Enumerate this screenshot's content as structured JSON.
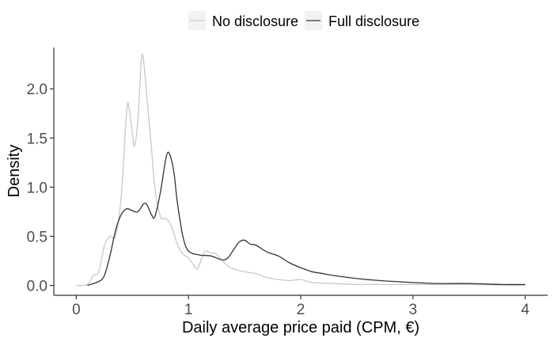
{
  "chart_data": {
    "type": "line",
    "title": "",
    "xlabel": "Daily average price paid (CPM, €)",
    "ylabel": "Density",
    "xlim": [
      -0.2,
      4.2
    ],
    "ylim": [
      -0.1,
      2.42
    ],
    "x_ticks": [
      0,
      1,
      2,
      3,
      4
    ],
    "x_tick_labels": [
      "0",
      "1",
      "2",
      "3",
      "4"
    ],
    "y_ticks": [
      0.0,
      0.5,
      1.0,
      1.5,
      2.0
    ],
    "y_tick_labels": [
      "0.0",
      "0.5",
      "1.0",
      "1.5",
      "2.0"
    ],
    "grid": false,
    "legend": {
      "position": "top"
    },
    "series": [
      {
        "name": "No disclosure",
        "color": "#c8c8c8",
        "points": [
          [
            0.0,
            0.0
          ],
          [
            0.1,
            0.01
          ],
          [
            0.15,
            0.1
          ],
          [
            0.2,
            0.14
          ],
          [
            0.25,
            0.4
          ],
          [
            0.3,
            0.5
          ],
          [
            0.35,
            0.5
          ],
          [
            0.4,
            0.9
          ],
          [
            0.45,
            1.78
          ],
          [
            0.47,
            1.8
          ],
          [
            0.5,
            1.55
          ],
          [
            0.52,
            1.42
          ],
          [
            0.55,
            1.7
          ],
          [
            0.58,
            2.3
          ],
          [
            0.6,
            2.28
          ],
          [
            0.63,
            1.9
          ],
          [
            0.67,
            1.4
          ],
          [
            0.7,
            1.0
          ],
          [
            0.75,
            0.7
          ],
          [
            0.8,
            0.68
          ],
          [
            0.85,
            0.6
          ],
          [
            0.9,
            0.42
          ],
          [
            0.95,
            0.32
          ],
          [
            1.0,
            0.28
          ],
          [
            1.05,
            0.2
          ],
          [
            1.08,
            0.17
          ],
          [
            1.12,
            0.28
          ],
          [
            1.15,
            0.35
          ],
          [
            1.2,
            0.33
          ],
          [
            1.25,
            0.32
          ],
          [
            1.3,
            0.25
          ],
          [
            1.35,
            0.2
          ],
          [
            1.4,
            0.17
          ],
          [
            1.5,
            0.14
          ],
          [
            1.6,
            0.12
          ],
          [
            1.7,
            0.08
          ],
          [
            1.8,
            0.06
          ],
          [
            1.9,
            0.05
          ],
          [
            2.0,
            0.06
          ],
          [
            2.1,
            0.03
          ],
          [
            2.3,
            0.02
          ],
          [
            2.5,
            0.01
          ],
          [
            3.0,
            0.01
          ],
          [
            3.5,
            0.01
          ],
          [
            4.0,
            0.0
          ]
        ]
      },
      {
        "name": "Full disclosure",
        "color": "#333333",
        "points": [
          [
            0.1,
            0.0
          ],
          [
            0.2,
            0.04
          ],
          [
            0.25,
            0.1
          ],
          [
            0.3,
            0.3
          ],
          [
            0.35,
            0.56
          ],
          [
            0.4,
            0.72
          ],
          [
            0.45,
            0.78
          ],
          [
            0.5,
            0.76
          ],
          [
            0.55,
            0.75
          ],
          [
            0.6,
            0.83
          ],
          [
            0.63,
            0.82
          ],
          [
            0.67,
            0.72
          ],
          [
            0.7,
            0.7
          ],
          [
            0.75,
            0.95
          ],
          [
            0.8,
            1.3
          ],
          [
            0.83,
            1.34
          ],
          [
            0.87,
            1.15
          ],
          [
            0.9,
            0.85
          ],
          [
            0.95,
            0.5
          ],
          [
            1.0,
            0.35
          ],
          [
            1.1,
            0.31
          ],
          [
            1.2,
            0.3
          ],
          [
            1.3,
            0.26
          ],
          [
            1.35,
            0.28
          ],
          [
            1.4,
            0.36
          ],
          [
            1.45,
            0.44
          ],
          [
            1.5,
            0.46
          ],
          [
            1.55,
            0.42
          ],
          [
            1.6,
            0.41
          ],
          [
            1.7,
            0.34
          ],
          [
            1.8,
            0.3
          ],
          [
            1.9,
            0.23
          ],
          [
            2.0,
            0.18
          ],
          [
            2.1,
            0.14
          ],
          [
            2.2,
            0.12
          ],
          [
            2.3,
            0.1
          ],
          [
            2.5,
            0.07
          ],
          [
            2.7,
            0.05
          ],
          [
            3.0,
            0.03
          ],
          [
            3.2,
            0.02
          ],
          [
            3.5,
            0.02
          ],
          [
            3.8,
            0.01
          ],
          [
            4.0,
            0.01
          ]
        ]
      }
    ]
  }
}
